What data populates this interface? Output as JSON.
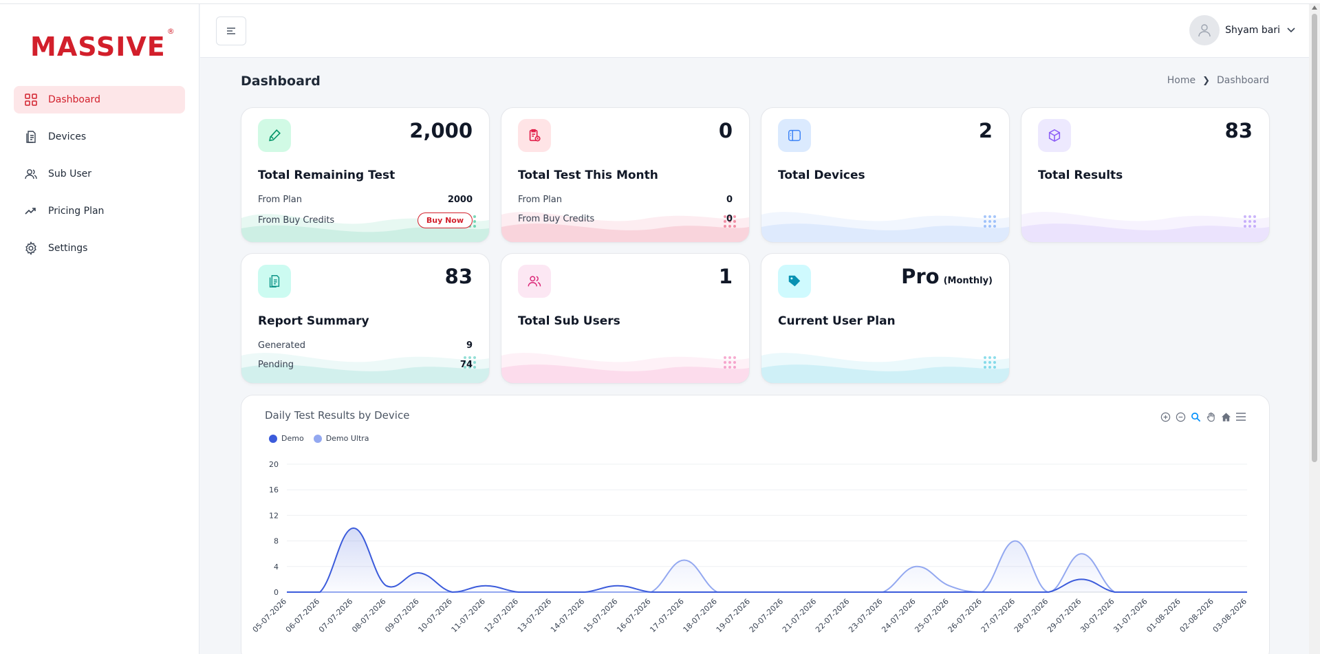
{
  "brand": {
    "logo": "MASSIVE",
    "reg": "®"
  },
  "sidebar": {
    "items": [
      {
        "label": "Dashboard",
        "icon": "grid-icon",
        "active": true
      },
      {
        "label": "Devices",
        "icon": "document-icon"
      },
      {
        "label": "Sub User",
        "icon": "users-icon"
      },
      {
        "label": "Pricing Plan",
        "icon": "trend-icon"
      },
      {
        "label": "Settings",
        "icon": "gear-icon"
      }
    ]
  },
  "header": {
    "user_name": "Shyam bari"
  },
  "page": {
    "title": "Dashboard",
    "breadcrumb": [
      "Home",
      "Dashboard"
    ]
  },
  "cards": {
    "remaining": {
      "value": "2,000",
      "label": "Total Remaining Test",
      "from_plan_label": "From Plan",
      "from_plan_value": "2000",
      "from_buy_label": "From Buy Credits",
      "buy_now": "Buy Now",
      "color": "#10b981"
    },
    "this_month": {
      "value": "0",
      "label": "Total Test This Month",
      "from_plan_label": "From Plan",
      "from_plan_value": "0",
      "from_buy_label": "From Buy Credits",
      "from_buy_value": "0",
      "color": "#e11d48"
    },
    "devices": {
      "value": "2",
      "label": "Total Devices",
      "color": "#3b82f6"
    },
    "results": {
      "value": "83",
      "label": "Total Results",
      "color": "#8b5cf6"
    },
    "report": {
      "value": "83",
      "label": "Report Summary",
      "generated_label": "Generated",
      "generated_value": "9",
      "pending_label": "Pending",
      "pending_value": "74",
      "color": "#14b8a6"
    },
    "sub_users": {
      "value": "1",
      "label": "Total Sub Users",
      "color": "#ec4899"
    },
    "plan": {
      "value": "Pro",
      "period": "(Monthly)",
      "label": "Current User Plan",
      "color": "#06b6d4"
    }
  },
  "chart_data": {
    "type": "area",
    "title": "Daily Test Results by Device",
    "x": [
      "05-07-2026",
      "06-07-2026",
      "07-07-2026",
      "08-07-2026",
      "09-07-2026",
      "10-07-2026",
      "11-07-2026",
      "12-07-2026",
      "13-07-2026",
      "14-07-2026",
      "15-07-2026",
      "16-07-2026",
      "17-07-2026",
      "18-07-2026",
      "19-07-2026",
      "20-07-2026",
      "21-07-2026",
      "22-07-2026",
      "23-07-2026",
      "24-07-2026",
      "25-07-2026",
      "26-07-2026",
      "27-07-2026",
      "28-07-2026",
      "29-07-2026",
      "30-07-2026",
      "31-07-2026",
      "01-08-2026",
      "02-08-2026",
      "03-08-2026"
    ],
    "series": [
      {
        "name": "Demo",
        "color": "#3b5bdb",
        "values": [
          0,
          0,
          10,
          1,
          3,
          0,
          1,
          0,
          0,
          0,
          1,
          0,
          0,
          0,
          0,
          0,
          0,
          0,
          0,
          0,
          0,
          0,
          0,
          0,
          2,
          0,
          0,
          0,
          0,
          0
        ]
      },
      {
        "name": "Demo Ultra",
        "color": "#93a8f0",
        "values": [
          0,
          0,
          0,
          0,
          0,
          0,
          0,
          0,
          0,
          0,
          0,
          0,
          5,
          0,
          0,
          0,
          0,
          0,
          0,
          4,
          1,
          0,
          8,
          0,
          6,
          0,
          0,
          0,
          0,
          0
        ]
      }
    ],
    "yticks": [
      0,
      4,
      8,
      12,
      16,
      20
    ],
    "ylim": [
      0,
      20
    ],
    "grid": true,
    "legend": "top-left"
  }
}
